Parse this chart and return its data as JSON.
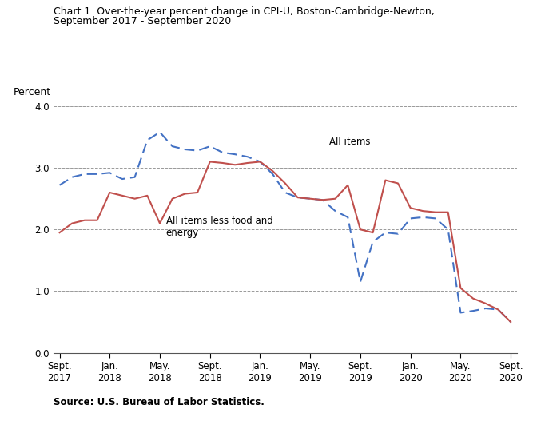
{
  "title_line1": "Chart 1. Over-the-year percent change in CPI-U, Boston-Cambridge-Newton,",
  "title_line2": "September 2017 - September 2020",
  "ylabel": "Percent",
  "source": "Source: U.S. Bureau of Labor Statistics.",
  "ylim": [
    0.0,
    4.0
  ],
  "yticks": [
    0.0,
    1.0,
    2.0,
    3.0,
    4.0
  ],
  "x_labels": [
    "Sept.\n2017",
    "Jan.\n2018",
    "May.\n2018",
    "Sept.\n2018",
    "Jan.\n2019",
    "May.\n2019",
    "Sept.\n2019",
    "Jan.\n2020",
    "May.\n2020",
    "Sept.\n2020"
  ],
  "x_positions": [
    0,
    4,
    8,
    12,
    16,
    20,
    24,
    28,
    32,
    36
  ],
  "all_items_color": "#4472C4",
  "all_items_less_color": "#C0504D",
  "grid_color": "#999999",
  "all_items_label": "All items",
  "all_items_less_label": "All items less food and\nenergy",
  "ai": [
    2.72,
    2.85,
    2.9,
    2.9,
    2.92,
    2.82,
    2.85,
    3.45,
    3.58,
    3.35,
    3.3,
    3.28,
    3.35,
    3.25,
    3.22,
    3.18,
    3.1,
    2.9,
    2.6,
    2.52,
    2.5,
    2.48,
    2.3,
    2.2,
    1.15,
    1.8,
    1.95,
    1.93,
    2.18,
    2.2,
    2.18,
    2.0,
    0.65,
    0.68,
    0.72,
    0.7,
    0.5
  ],
  "le": [
    1.95,
    2.1,
    2.15,
    2.15,
    2.6,
    2.55,
    2.5,
    2.55,
    2.1,
    2.5,
    2.58,
    2.6,
    3.1,
    3.08,
    3.05,
    3.08,
    3.1,
    2.95,
    2.75,
    2.52,
    2.5,
    2.48,
    2.5,
    2.72,
    2.0,
    1.95,
    2.8,
    2.75,
    2.35,
    2.3,
    2.28,
    2.28,
    1.05,
    0.88,
    0.8,
    0.7,
    0.5
  ]
}
